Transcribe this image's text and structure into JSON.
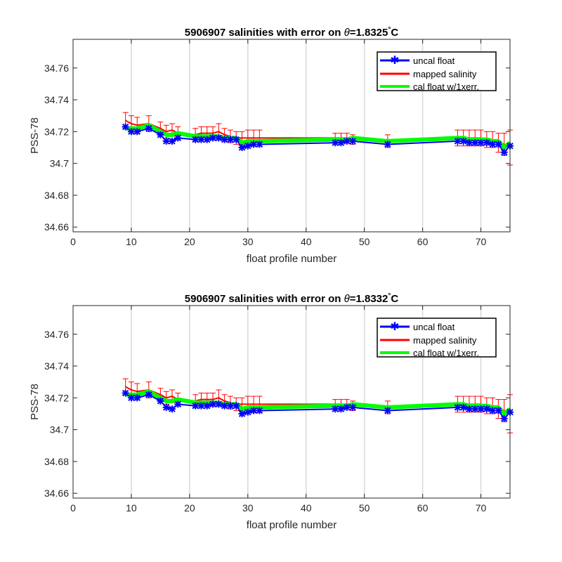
{
  "chart_data": [
    {
      "type": "line",
      "title_prefix": "5906907 salinities with error on ",
      "title_symbol": "θ",
      "title_value": "=1.8325",
      "title_degree": "°",
      "title_unit": "C",
      "xlabel": "float profile number",
      "ylabel": "PSS-78",
      "xlim": [
        0,
        75
      ],
      "ylim": [
        34.657,
        34.778
      ],
      "xticks": [
        0,
        10,
        20,
        30,
        40,
        50,
        60,
        70
      ],
      "xtick_labels": [
        "0",
        "10",
        "20",
        "30",
        "40",
        "50",
        "60",
        "70"
      ],
      "yticks": [
        34.66,
        34.68,
        34.7,
        34.72,
        34.74,
        34.76
      ],
      "ytick_labels": [
        "34.66",
        "34.68",
        "34.7",
        "34.72",
        "34.74",
        "34.76"
      ],
      "grid": "x",
      "legend_position": "top-right",
      "x": [
        9,
        10,
        11,
        13,
        15,
        16,
        17,
        18,
        21,
        22,
        23,
        24,
        25,
        26,
        27,
        28,
        29,
        30,
        31,
        32,
        45,
        46,
        47,
        48,
        54,
        66,
        67,
        68,
        69,
        70,
        71,
        72,
        73,
        74,
        75
      ],
      "series": [
        {
          "name": "uncal float",
          "color": "#0000ff",
          "marker": "asterisk",
          "values": [
            34.723,
            34.72,
            34.72,
            34.722,
            34.718,
            34.714,
            34.714,
            34.716,
            34.715,
            34.715,
            34.715,
            34.716,
            34.716,
            34.715,
            34.715,
            34.715,
            34.71,
            34.711,
            34.712,
            34.712,
            34.713,
            34.713,
            34.714,
            34.714,
            34.712,
            34.714,
            34.714,
            34.713,
            34.713,
            34.713,
            34.713,
            34.712,
            34.712,
            34.707,
            34.711
          ]
        },
        {
          "name": "mapped salinity",
          "color": "#ff0000",
          "values": [
            34.727,
            34.725,
            34.724,
            34.725,
            34.722,
            34.72,
            34.721,
            34.719,
            34.718,
            34.719,
            34.719,
            34.719,
            34.72,
            34.718,
            34.717,
            34.716,
            34.716,
            34.716,
            34.716,
            34.716,
            34.716,
            34.716,
            34.716,
            34.715,
            34.714,
            34.716,
            34.716,
            34.716,
            34.716,
            34.716,
            34.715,
            34.715,
            34.713,
            34.712,
            34.71
          ],
          "error": [
            0.005,
            0.005,
            0.005,
            0.005,
            0.004,
            0.004,
            0.004,
            0.004,
            0.004,
            0.004,
            0.004,
            0.004,
            0.005,
            0.004,
            0.004,
            0.004,
            0.004,
            0.005,
            0.005,
            0.005,
            0.003,
            0.003,
            0.003,
            0.003,
            0.004,
            0.005,
            0.005,
            0.005,
            0.005,
            0.005,
            0.005,
            0.005,
            0.006,
            0.007,
            0.011
          ]
        },
        {
          "name": "cal float w/1xerr.",
          "color": "#00ff00",
          "values": [
            34.722,
            34.722,
            34.722,
            34.724,
            34.72,
            34.718,
            34.718,
            34.719,
            34.717,
            34.717,
            34.717,
            34.717,
            34.717,
            34.716,
            34.716,
            34.716,
            34.713,
            34.714,
            34.714,
            34.714,
            34.715,
            34.715,
            34.715,
            34.716,
            34.714,
            34.716,
            34.716,
            34.715,
            34.715,
            34.715,
            34.715,
            34.714,
            34.714,
            34.71,
            34.713
          ]
        }
      ]
    },
    {
      "type": "line",
      "title_prefix": "5906907 salinities with error on ",
      "title_symbol": "θ",
      "title_value": "=1.8332",
      "title_degree": "°",
      "title_unit": "C",
      "xlabel": "float profile number",
      "ylabel": "PSS-78",
      "xlim": [
        0,
        75
      ],
      "ylim": [
        34.657,
        34.778
      ],
      "xticks": [
        0,
        10,
        20,
        30,
        40,
        50,
        60,
        70
      ],
      "xtick_labels": [
        "0",
        "10",
        "20",
        "30",
        "40",
        "50",
        "60",
        "70"
      ],
      "yticks": [
        34.66,
        34.68,
        34.7,
        34.72,
        34.74,
        34.76
      ],
      "ytick_labels": [
        "34.66",
        "34.68",
        "34.7",
        "34.72",
        "34.74",
        "34.76"
      ],
      "grid": "x",
      "legend_position": "top-right",
      "x": [
        9,
        10,
        11,
        13,
        15,
        16,
        17,
        18,
        21,
        22,
        23,
        24,
        25,
        26,
        27,
        28,
        29,
        30,
        31,
        32,
        45,
        46,
        47,
        48,
        54,
        66,
        67,
        68,
        69,
        70,
        71,
        72,
        73,
        74,
        75
      ],
      "series": [
        {
          "name": "uncal float",
          "color": "#0000ff",
          "marker": "asterisk",
          "values": [
            34.723,
            34.72,
            34.72,
            34.722,
            34.718,
            34.714,
            34.713,
            34.716,
            34.715,
            34.715,
            34.715,
            34.716,
            34.716,
            34.715,
            34.715,
            34.715,
            34.71,
            34.711,
            34.712,
            34.712,
            34.713,
            34.713,
            34.714,
            34.714,
            34.712,
            34.714,
            34.714,
            34.713,
            34.713,
            34.713,
            34.713,
            34.712,
            34.712,
            34.707,
            34.711
          ]
        },
        {
          "name": "mapped salinity",
          "color": "#ff0000",
          "values": [
            34.727,
            34.725,
            34.724,
            34.725,
            34.722,
            34.72,
            34.721,
            34.719,
            34.718,
            34.719,
            34.719,
            34.719,
            34.72,
            34.718,
            34.717,
            34.716,
            34.716,
            34.716,
            34.716,
            34.716,
            34.716,
            34.716,
            34.716,
            34.715,
            34.714,
            34.716,
            34.716,
            34.716,
            34.716,
            34.716,
            34.715,
            34.715,
            34.713,
            34.712,
            34.71
          ],
          "error": [
            0.005,
            0.005,
            0.005,
            0.005,
            0.004,
            0.004,
            0.004,
            0.004,
            0.004,
            0.004,
            0.004,
            0.004,
            0.005,
            0.004,
            0.004,
            0.004,
            0.004,
            0.005,
            0.005,
            0.005,
            0.003,
            0.003,
            0.003,
            0.003,
            0.004,
            0.005,
            0.005,
            0.005,
            0.005,
            0.005,
            0.005,
            0.005,
            0.006,
            0.007,
            0.012
          ]
        },
        {
          "name": "cal float w/1xerr.",
          "color": "#00ff00",
          "values": [
            34.722,
            34.722,
            34.722,
            34.724,
            34.72,
            34.718,
            34.718,
            34.719,
            34.717,
            34.717,
            34.717,
            34.717,
            34.717,
            34.716,
            34.716,
            34.716,
            34.713,
            34.714,
            34.714,
            34.714,
            34.715,
            34.715,
            34.715,
            34.716,
            34.714,
            34.716,
            34.716,
            34.715,
            34.715,
            34.715,
            34.715,
            34.714,
            34.714,
            34.71,
            34.713
          ]
        }
      ]
    }
  ]
}
